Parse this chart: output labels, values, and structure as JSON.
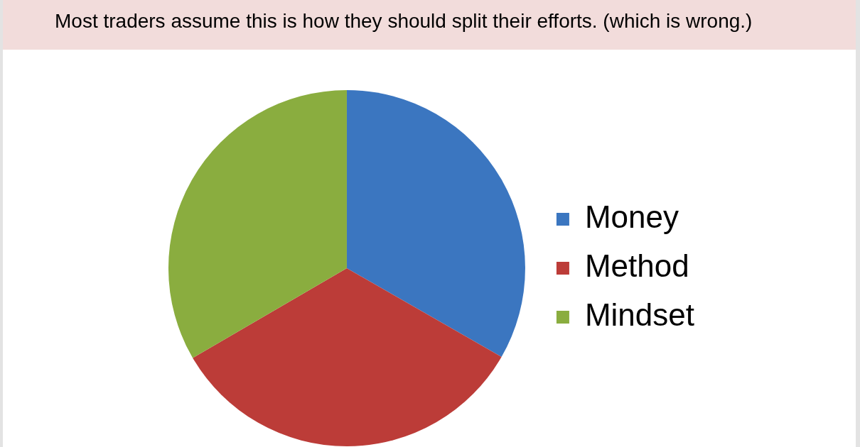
{
  "chart_data": {
    "type": "pie",
    "title": "Most traders assume this is how they should split their efforts. (which is wrong.)",
    "categories": [
      "Money",
      "Method",
      "Mindset"
    ],
    "values": [
      33.3,
      33.3,
      33.4
    ],
    "colors": [
      "#3b76c0",
      "#bc3c38",
      "#8aad3f"
    ],
    "legend": "right"
  }
}
